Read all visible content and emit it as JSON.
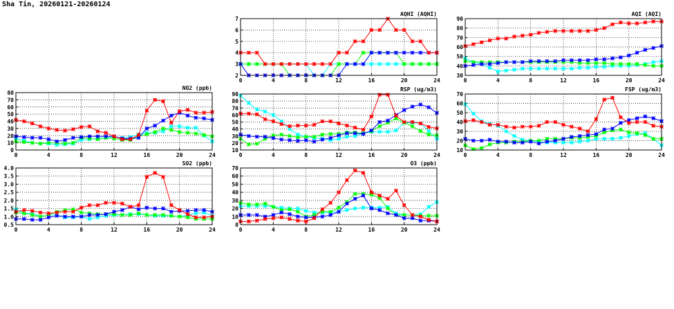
{
  "page": {
    "title": "Sha Tin, 20260121-20260124"
  },
  "series_colors": {
    "red": "#ff0000",
    "blue": "#0000ff",
    "green": "#00ff00",
    "cyan": "#00ffff"
  },
  "chart_data": [
    {
      "type": "line",
      "title": "AQHI (AQHI)",
      "xlabel": "",
      "ylabel": "",
      "xlim": [
        0,
        24
      ],
      "ylim": [
        2,
        7
      ],
      "xticks": [
        "0",
        "4",
        "8",
        "12",
        "16",
        "20",
        "24"
      ],
      "yticks": [
        "2",
        "3",
        "4",
        "5",
        "6",
        "7"
      ],
      "grid": true,
      "x": [
        0,
        1,
        2,
        3,
        4,
        5,
        6,
        7,
        8,
        9,
        10,
        11,
        12,
        13,
        14,
        15,
        16,
        17,
        18,
        19,
        20,
        21,
        22,
        23,
        24
      ],
      "series": [
        {
          "name": "cyan",
          "values": [
            3,
            3,
            3,
            3,
            3,
            3,
            3,
            3,
            3,
            2,
            2,
            3,
            3,
            3,
            3,
            3,
            3,
            3,
            3,
            3,
            3,
            3,
            3,
            3,
            3
          ]
        },
        {
          "name": "green",
          "values": [
            3,
            3,
            3,
            3,
            3,
            3,
            2,
            2,
            2,
            2,
            2,
            2,
            3,
            3,
            3,
            4,
            4,
            4,
            4,
            4,
            3,
            3,
            3,
            3,
            3
          ]
        },
        {
          "name": "blue",
          "values": [
            3,
            2,
            2,
            2,
            2,
            2,
            2,
            2,
            2,
            2,
            2,
            2,
            2,
            3,
            3,
            3,
            4,
            4,
            4,
            4,
            4,
            4,
            4,
            4,
            4
          ]
        },
        {
          "name": "red",
          "values": [
            4,
            4,
            4,
            3,
            3,
            3,
            3,
            3,
            3,
            3,
            3,
            3,
            4,
            4,
            5,
            5,
            6,
            6,
            7,
            6,
            6,
            5,
            5,
            4,
            4
          ]
        }
      ]
    },
    {
      "type": "line",
      "title": "AQI (AQI)",
      "xlabel": "",
      "ylabel": "",
      "xlim": [
        0,
        24
      ],
      "ylim": [
        30,
        90
      ],
      "xticks": [
        "0",
        "4",
        "8",
        "12",
        "16",
        "20",
        "24"
      ],
      "yticks": [
        "30",
        "40",
        "50",
        "60",
        "70",
        "80",
        "90"
      ],
      "grid": true,
      "x": [
        0,
        1,
        2,
        3,
        4,
        5,
        6,
        7,
        8,
        9,
        10,
        11,
        12,
        13,
        14,
        15,
        16,
        17,
        18,
        19,
        20,
        21,
        22,
        23,
        24
      ],
      "series": [
        {
          "name": "cyan",
          "values": [
            48,
            44,
            42,
            38,
            34,
            35,
            36,
            37,
            37,
            37,
            37,
            37,
            37,
            37,
            38,
            38,
            39,
            39,
            40,
            40,
            40,
            41,
            42,
            44,
            45
          ]
        },
        {
          "name": "green",
          "values": [
            45,
            44,
            44,
            44,
            44,
            44,
            44,
            44,
            44,
            44,
            44,
            44,
            44,
            44,
            43,
            43,
            43,
            43,
            42,
            42,
            42,
            42,
            41,
            40,
            40
          ]
        },
        {
          "name": "blue",
          "values": [
            40,
            41,
            42,
            42,
            43,
            44,
            44,
            44,
            45,
            45,
            45,
            45,
            46,
            46,
            46,
            46,
            47,
            47,
            48,
            49,
            51,
            54,
            57,
            59,
            61
          ]
        },
        {
          "name": "red",
          "values": [
            61,
            63,
            65,
            67,
            69,
            69,
            71,
            72,
            73,
            75,
            76,
            77,
            77,
            77,
            77,
            77,
            78,
            80,
            84,
            86,
            85,
            85,
            86,
            87,
            87
          ]
        }
      ]
    },
    {
      "type": "line",
      "title": "NO2 (ppb)",
      "xlabel": "",
      "ylabel": "",
      "xlim": [
        0,
        24
      ],
      "ylim": [
        0,
        80
      ],
      "xticks": [
        "0",
        "4",
        "8",
        "12",
        "16",
        "20",
        "24"
      ],
      "yticks": [
        "0",
        "10",
        "20",
        "30",
        "40",
        "50",
        "60",
        "70",
        "80"
      ],
      "grid": true,
      "x": [
        0,
        1,
        2,
        3,
        4,
        5,
        6,
        7,
        8,
        9,
        10,
        11,
        12,
        13,
        14,
        15,
        16,
        17,
        18,
        19,
        20,
        21,
        22,
        23,
        24
      ],
      "series": [
        {
          "name": "cyan",
          "values": [
            16,
            13,
            10,
            9,
            9,
            7,
            8,
            9,
            14,
            15,
            16,
            17,
            18,
            17,
            18,
            22,
            24,
            24,
            26,
            33,
            33,
            31,
            31,
            20,
            12
          ]
        },
        {
          "name": "green",
          "values": [
            12,
            11,
            10,
            9,
            10,
            10,
            9,
            10,
            17,
            16,
            15,
            17,
            16,
            14,
            14,
            19,
            22,
            25,
            30,
            28,
            25,
            24,
            23,
            21,
            19
          ]
        },
        {
          "name": "blue",
          "values": [
            19,
            18,
            17,
            17,
            15,
            12,
            14,
            17,
            18,
            19,
            19,
            19,
            19,
            16,
            16,
            17,
            30,
            34,
            41,
            48,
            52,
            48,
            45,
            44,
            42
          ]
        },
        {
          "name": "red",
          "values": [
            42,
            40,
            37,
            33,
            30,
            28,
            27,
            29,
            32,
            33,
            26,
            24,
            19,
            15,
            15,
            21,
            55,
            70,
            68,
            38,
            54,
            56,
            52,
            52,
            53
          ]
        }
      ]
    },
    {
      "type": "line",
      "title": "RSP (ug/m3)",
      "xlabel": "",
      "ylabel": "",
      "xlim": [
        0,
        24
      ],
      "ylim": [
        10,
        90
      ],
      "xticks": [
        "0",
        "4",
        "8",
        "12",
        "16",
        "20",
        "24"
      ],
      "yticks": [
        "10",
        "20",
        "30",
        "40",
        "50",
        "60",
        "70",
        "80",
        "90"
      ],
      "grid": true,
      "x": [
        0,
        1,
        2,
        3,
        4,
        5,
        6,
        7,
        8,
        9,
        10,
        11,
        12,
        13,
        14,
        15,
        16,
        17,
        18,
        19,
        20,
        21,
        22,
        23,
        24
      ],
      "series": [
        {
          "name": "cyan",
          "values": [
            88,
            77,
            68,
            65,
            60,
            51,
            40,
            32,
            29,
            27,
            26,
            24,
            26,
            29,
            30,
            34,
            36,
            36,
            36,
            38,
            49,
            49,
            48,
            37,
            26
          ]
        },
        {
          "name": "green",
          "values": [
            26,
            18,
            19,
            26,
            31,
            32,
            30,
            28,
            29,
            29,
            32,
            33,
            33,
            35,
            35,
            34,
            37,
            44,
            49,
            55,
            49,
            44,
            37,
            32,
            31
          ]
        },
        {
          "name": "blue",
          "values": [
            32,
            30,
            29,
            29,
            27,
            25,
            24,
            23,
            24,
            22,
            25,
            27,
            31,
            34,
            34,
            33,
            38,
            50,
            52,
            60,
            67,
            72,
            75,
            71,
            63
          ]
        },
        {
          "name": "red",
          "values": [
            62,
            62,
            61,
            54,
            51,
            47,
            44,
            45,
            45,
            46,
            51,
            51,
            48,
            45,
            42,
            39,
            58,
            89,
            89,
            59,
            50,
            50,
            48,
            43,
            41
          ]
        }
      ]
    },
    {
      "type": "line",
      "title": "FSP (ug/m3)",
      "xlabel": "",
      "ylabel": "",
      "xlim": [
        0,
        24
      ],
      "ylim": [
        10,
        70
      ],
      "xticks": [
        "0",
        "4",
        "8",
        "12",
        "16",
        "20",
        "24"
      ],
      "yticks": [
        "10",
        "20",
        "30",
        "40",
        "50",
        "60",
        "70"
      ],
      "grid": true,
      "x": [
        0,
        1,
        2,
        3,
        4,
        5,
        6,
        7,
        8,
        9,
        10,
        11,
        12,
        13,
        14,
        15,
        16,
        17,
        18,
        19,
        20,
        21,
        22,
        23,
        24
      ],
      "series": [
        {
          "name": "cyan",
          "values": [
            59,
            49,
            41,
            38,
            36,
            30,
            25,
            21,
            20,
            19,
            18,
            18,
            18,
            18,
            19,
            20,
            22,
            22,
            22,
            23,
            25,
            27,
            28,
            22,
            15
          ]
        },
        {
          "name": "green",
          "values": [
            15,
            11,
            12,
            16,
            18,
            18,
            19,
            19,
            20,
            20,
            22,
            22,
            22,
            23,
            23,
            24,
            25,
            29,
            31,
            32,
            29,
            28,
            26,
            22,
            22
          ]
        },
        {
          "name": "blue",
          "values": [
            22,
            20,
            20,
            21,
            19,
            19,
            18,
            18,
            19,
            17,
            19,
            20,
            22,
            24,
            25,
            26,
            27,
            32,
            33,
            39,
            42,
            44,
            46,
            44,
            41
          ]
        },
        {
          "name": "red",
          "values": [
            41,
            42,
            40,
            37,
            37,
            35,
            34,
            35,
            35,
            36,
            40,
            40,
            37,
            35,
            33,
            30,
            43,
            64,
            66,
            45,
            39,
            40,
            40,
            36,
            35
          ]
        }
      ]
    },
    {
      "type": "line",
      "title": "SO2 (ppb)",
      "xlabel": "",
      "ylabel": "",
      "xlim": [
        0,
        24
      ],
      "ylim": [
        0.5,
        4.0
      ],
      "xticks": [
        "0",
        "4",
        "8",
        "12",
        "16",
        "20",
        "24"
      ],
      "yticks": [
        "0.5",
        "1.0",
        "1.5",
        "2.0",
        "2.5",
        "3.0",
        "3.5",
        "4.0"
      ],
      "grid": true,
      "x": [
        0,
        1,
        2,
        3,
        4,
        5,
        6,
        7,
        8,
        9,
        10,
        11,
        12,
        13,
        14,
        15,
        16,
        17,
        18,
        19,
        20,
        21,
        22,
        23,
        24
      ],
      "series": [
        {
          "name": "cyan",
          "values": [
            1.45,
            1.2,
            1.2,
            1.0,
            1.1,
            1.1,
            0.95,
            0.95,
            1.0,
            0.85,
            0.95,
            1.05,
            1.1,
            1.1,
            1.15,
            1.15,
            1.1,
            1.05,
            1.05,
            1.05,
            1.0,
            1.1,
            1.2,
            1.25,
            1.05
          ]
        },
        {
          "name": "green",
          "values": [
            1.25,
            1.2,
            1.1,
            1.0,
            1.1,
            1.3,
            1.4,
            1.45,
            1.25,
            1.2,
            1.15,
            1.15,
            1.15,
            1.1,
            1.1,
            1.2,
            1.1,
            1.1,
            1.1,
            1.05,
            1.0,
            0.95,
            0.85,
            0.85,
            0.85
          ]
        },
        {
          "name": "blue",
          "values": [
            0.85,
            0.85,
            0.8,
            0.8,
            0.95,
            1.05,
            1.0,
            1.0,
            1.0,
            1.1,
            1.1,
            1.15,
            1.3,
            1.4,
            1.6,
            1.45,
            1.55,
            1.5,
            1.5,
            1.3,
            1.35,
            1.35,
            1.4,
            1.4,
            1.3
          ]
        },
        {
          "name": "red",
          "values": [
            1.3,
            1.4,
            1.35,
            1.25,
            1.2,
            1.25,
            1.3,
            1.3,
            1.55,
            1.7,
            1.7,
            1.85,
            1.85,
            1.8,
            1.6,
            1.7,
            3.45,
            3.7,
            3.45,
            1.7,
            1.4,
            1.15,
            0.95,
            0.95,
            1.0
          ]
        }
      ]
    },
    {
      "type": "line",
      "title": "O3 (ppb)",
      "xlabel": "",
      "ylabel": "",
      "xlim": [
        0,
        24
      ],
      "ylim": [
        0,
        70
      ],
      "xticks": [
        "0",
        "4",
        "8",
        "12",
        "16",
        "20",
        "24"
      ],
      "yticks": [
        "0",
        "10",
        "20",
        "30",
        "40",
        "50",
        "60",
        "70"
      ],
      "grid": true,
      "x": [
        0,
        1,
        2,
        3,
        4,
        5,
        6,
        7,
        8,
        9,
        10,
        11,
        12,
        13,
        14,
        15,
        16,
        17,
        18,
        19,
        20,
        21,
        22,
        23,
        24
      ],
      "series": [
        {
          "name": "cyan",
          "values": [
            23,
            23,
            23,
            23,
            22,
            21,
            20,
            20,
            17,
            15,
            15,
            15,
            16,
            18,
            20,
            21,
            21,
            21,
            22,
            14,
            12,
            12,
            13,
            22,
            28
          ]
        },
        {
          "name": "green",
          "values": [
            27,
            25,
            25,
            26,
            22,
            18,
            19,
            16,
            10,
            12,
            16,
            16,
            21,
            28,
            38,
            38,
            37,
            33,
            20,
            12,
            12,
            12,
            11,
            11,
            11
          ]
        },
        {
          "name": "blue",
          "values": [
            12,
            12,
            12,
            10,
            12,
            15,
            13,
            10,
            9,
            9,
            10,
            12,
            16,
            26,
            32,
            36,
            20,
            18,
            14,
            12,
            8,
            8,
            5,
            5,
            4
          ]
        },
        {
          "name": "red",
          "values": [
            4,
            4,
            5,
            7,
            8,
            9,
            7,
            5,
            4,
            8,
            19,
            27,
            40,
            55,
            67,
            64,
            40,
            36,
            32,
            42,
            24,
            12,
            10,
            6,
            4
          ]
        }
      ]
    }
  ]
}
